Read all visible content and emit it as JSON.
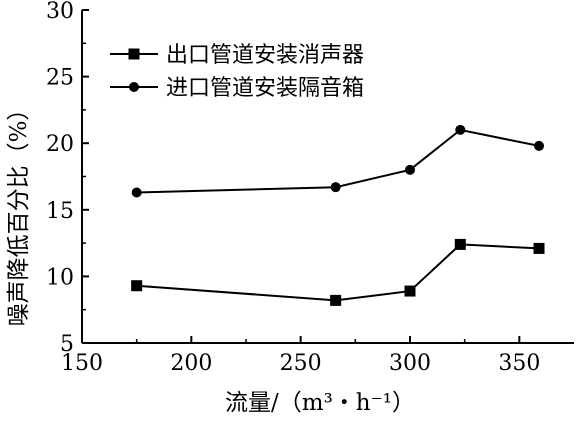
{
  "chart_data": {
    "type": "line",
    "xlabel": "流量/（m³・h⁻¹）",
    "ylabel": "噪声降低百分比（%）",
    "xlim": [
      150,
      375
    ],
    "ylim": [
      5,
      30
    ],
    "x_ticks": [
      150,
      200,
      250,
      300,
      350
    ],
    "y_ticks": [
      5,
      10,
      15,
      20,
      25,
      30
    ],
    "grid": false,
    "legend_position": "top-left",
    "series": [
      {
        "name": "出口管道安装消声器",
        "marker": "square",
        "x": [
          175,
          266,
          300,
          323,
          359
        ],
        "y": [
          9.3,
          8.2,
          8.9,
          12.4,
          12.1
        ]
      },
      {
        "name": "进口管道安装隔音箱",
        "marker": "circle",
        "x": [
          175,
          266,
          300,
          323,
          359
        ],
        "y": [
          16.3,
          16.7,
          18.0,
          21.0,
          19.8
        ]
      }
    ]
  }
}
